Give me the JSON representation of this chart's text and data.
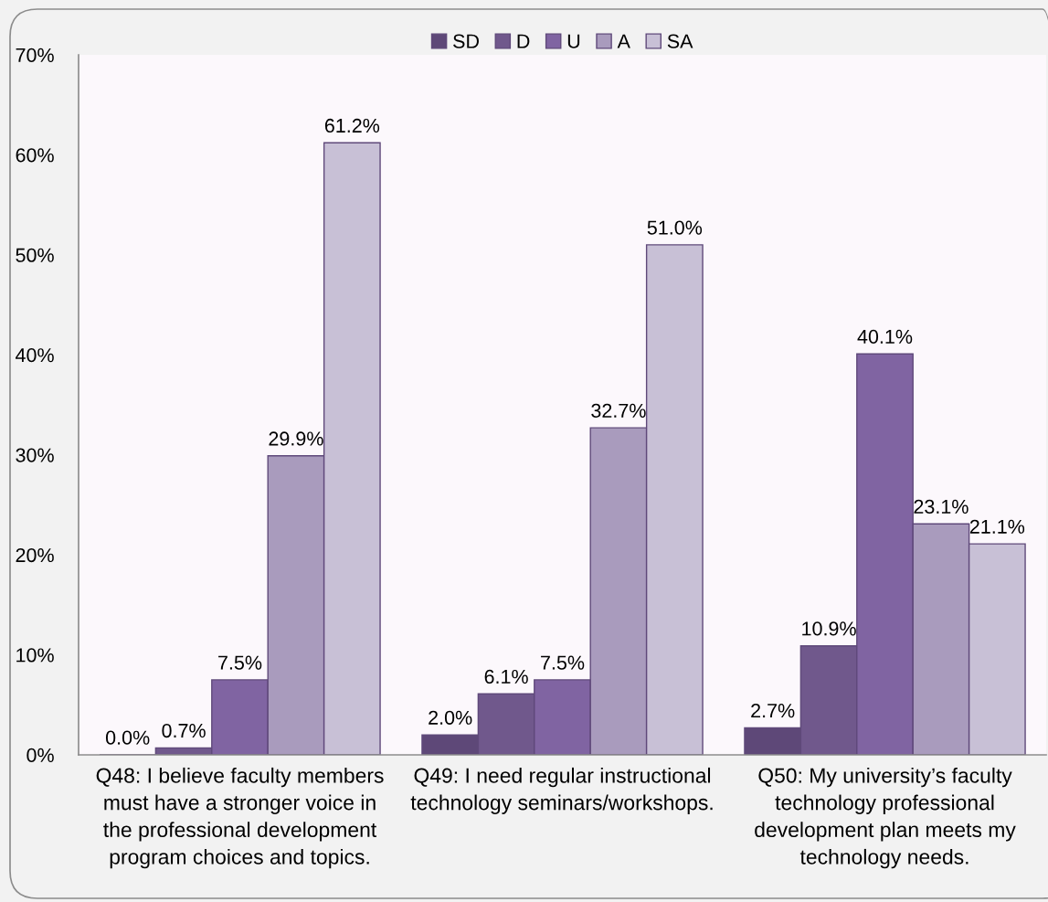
{
  "chart_data": {
    "type": "bar",
    "categories": [
      "Q48: I believe faculty members\nmust have a stronger voice in\nthe professional development\nprogram choices and topics.",
      "Q49: I need regular instructional\ntechnology seminars/workshops.",
      "Q50: My university’s faculty\ntechnology professional\ndevelopment plan meets my\ntechnology needs."
    ],
    "series": [
      {
        "name": "SD",
        "color": "#5e4878",
        "values": [
          0.0,
          2.0,
          2.7
        ],
        "value_labels": [
          "0.0%",
          "2.0%",
          "2.7%"
        ]
      },
      {
        "name": "D",
        "color": "#70588c",
        "values": [
          0.7,
          6.1,
          10.9
        ],
        "value_labels": [
          "0.7%",
          "6.1%",
          "10.9%"
        ]
      },
      {
        "name": "U",
        "color": "#8064a2",
        "values": [
          7.5,
          7.5,
          40.1
        ],
        "value_labels": [
          "7.5%",
          "7.5%",
          "40.1%"
        ]
      },
      {
        "name": "A",
        "color": "#a99bbd",
        "values": [
          29.9,
          32.7,
          23.1
        ],
        "value_labels": [
          "29.9%",
          "32.7%",
          "23.1%"
        ]
      },
      {
        "name": "SA",
        "color": "#c8c0d6",
        "values": [
          61.2,
          51.0,
          21.1
        ],
        "value_labels": [
          "61.2%",
          "51.0%",
          "21.1%"
        ]
      }
    ],
    "ylim": [
      0,
      70
    ],
    "yticks": [
      {
        "value": 0,
        "label": "0%"
      },
      {
        "value": 10,
        "label": "10%"
      },
      {
        "value": 20,
        "label": "20%"
      },
      {
        "value": 30,
        "label": "30%"
      },
      {
        "value": 40,
        "label": "40%"
      },
      {
        "value": 50,
        "label": "50%"
      },
      {
        "value": 60,
        "label": "60%"
      },
      {
        "value": 70,
        "label": "70%"
      }
    ],
    "grid": false,
    "legend": "top"
  }
}
